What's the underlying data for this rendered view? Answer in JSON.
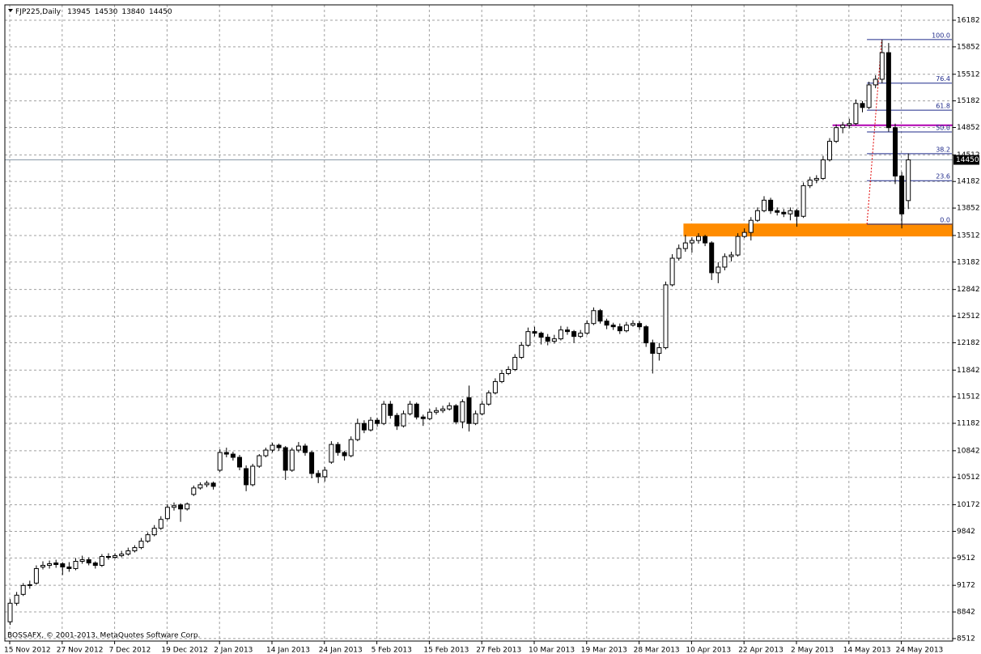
{
  "chart_data": {
    "type": "candlestick",
    "title": "FJP225,Daily",
    "footer": "BOSSAFX, © 2001-2013, MetaQuotes Software Corp.",
    "ylim": [
      8481,
      16373
    ],
    "yticks": [
      8512,
      8842,
      9172,
      9512,
      9842,
      10172,
      10512,
      10842,
      11182,
      11512,
      11842,
      12182,
      12512,
      12842,
      13182,
      13512,
      13852,
      14182,
      14512,
      14852,
      15182,
      15512,
      15852,
      16182
    ],
    "grid": true,
    "up_color": "#ffffff",
    "down_color": "#000000",
    "categories": [
      "15 Nov 2012",
      null,
      null,
      null,
      null,
      null,
      null,
      null,
      "27 Nov 2012",
      null,
      null,
      null,
      null,
      null,
      null,
      null,
      "7 Dec 2012",
      null,
      null,
      null,
      null,
      null,
      null,
      null,
      "19 Dec 2012",
      null,
      null,
      null,
      null,
      null,
      null,
      null,
      "2 Jan 2013",
      null,
      null,
      null,
      null,
      null,
      null,
      null,
      "14 Jan 2013",
      null,
      null,
      null,
      null,
      null,
      null,
      null,
      "24 Jan 2013",
      null,
      null,
      null,
      null,
      null,
      null,
      null,
      "5 Feb 2013",
      null,
      null,
      null,
      null,
      null,
      null,
      null,
      "15 Feb 2013",
      null,
      null,
      null,
      null,
      null,
      null,
      null,
      "27 Feb 2013",
      null,
      null,
      null,
      null,
      null,
      null,
      null,
      "10 Mar 2013",
      null,
      null,
      null,
      null,
      null,
      null,
      null,
      "19 Mar 2013",
      null,
      null,
      null,
      null,
      null,
      null,
      null,
      "28 Mar 2013",
      null,
      null,
      null,
      null,
      null,
      null,
      null,
      "10 Apr 2013",
      null,
      null,
      null,
      null,
      null,
      null,
      null,
      "22 Apr 2013",
      null,
      null,
      null,
      null,
      null,
      null,
      null,
      "2 May 2013",
      null,
      null,
      null,
      null,
      null,
      null,
      null,
      "14 May 2013",
      null,
      null,
      null,
      null,
      null,
      null,
      null,
      "24 May 2013",
      null
    ],
    "ohlc": [
      [
        8720,
        9000,
        8680,
        8950
      ],
      [
        8950,
        9090,
        8920,
        9050
      ],
      [
        9060,
        9200,
        9040,
        9170
      ],
      [
        9170,
        9230,
        9130,
        9180
      ],
      [
        9200,
        9420,
        9180,
        9380
      ],
      [
        9400,
        9470,
        9370,
        9420
      ],
      [
        9420,
        9480,
        9380,
        9440
      ],
      [
        9450,
        9490,
        9390,
        9430
      ],
      [
        9440,
        9460,
        9300,
        9400
      ],
      [
        9400,
        9460,
        9340,
        9380
      ],
      [
        9380,
        9510,
        9360,
        9470
      ],
      [
        9470,
        9540,
        9440,
        9490
      ],
      [
        9490,
        9520,
        9420,
        9450
      ],
      [
        9450,
        9470,
        9380,
        9420
      ],
      [
        9420,
        9560,
        9400,
        9530
      ],
      [
        9530,
        9570,
        9490,
        9520
      ],
      [
        9520,
        9570,
        9500,
        9540
      ],
      [
        9540,
        9600,
        9520,
        9560
      ],
      [
        9560,
        9640,
        9540,
        9600
      ],
      [
        9600,
        9670,
        9580,
        9640
      ],
      [
        9640,
        9760,
        9620,
        9720
      ],
      [
        9720,
        9830,
        9700,
        9800
      ],
      [
        9800,
        9920,
        9780,
        9880
      ],
      [
        9880,
        10030,
        9860,
        9990
      ],
      [
        10000,
        10180,
        9980,
        10140
      ],
      [
        10140,
        10200,
        10100,
        10160
      ],
      [
        10170,
        10190,
        9960,
        10120
      ],
      [
        10120,
        10200,
        10100,
        10180
      ],
      [
        10300,
        10410,
        10280,
        10380
      ],
      [
        10380,
        10450,
        10360,
        10420
      ],
      [
        10420,
        10470,
        10390,
        10440
      ],
      [
        10440,
        10460,
        10360,
        10400
      ],
      [
        10600,
        10860,
        10580,
        10820
      ],
      [
        10820,
        10880,
        10760,
        10800
      ],
      [
        10800,
        10830,
        10720,
        10760
      ],
      [
        10760,
        10790,
        10600,
        10640
      ],
      [
        10620,
        10660,
        10340,
        10420
      ],
      [
        10420,
        10680,
        10400,
        10650
      ],
      [
        10650,
        10800,
        10630,
        10780
      ],
      [
        10780,
        10880,
        10760,
        10850
      ],
      [
        10850,
        10940,
        10820,
        10910
      ],
      [
        10910,
        10930,
        10840,
        10880
      ],
      [
        10880,
        10900,
        10480,
        10600
      ],
      [
        10600,
        10880,
        10580,
        10850
      ],
      [
        10850,
        10950,
        10820,
        10900
      ],
      [
        10900,
        10930,
        10780,
        10820
      ],
      [
        10820,
        10840,
        10500,
        10560
      ],
      [
        10560,
        10600,
        10440,
        10520
      ],
      [
        10520,
        10640,
        10460,
        10600
      ],
      [
        10700,
        10960,
        10680,
        10920
      ],
      [
        10920,
        10950,
        10780,
        10820
      ],
      [
        10820,
        10840,
        10720,
        10780
      ],
      [
        10780,
        11020,
        10760,
        10980
      ],
      [
        10980,
        11240,
        10960,
        11180
      ],
      [
        11180,
        11220,
        11060,
        11100
      ],
      [
        11100,
        11260,
        11080,
        11220
      ],
      [
        11220,
        11250,
        11140,
        11180
      ],
      [
        11180,
        11460,
        11160,
        11420
      ],
      [
        11420,
        11460,
        11240,
        11280
      ],
      [
        11280,
        11310,
        11100,
        11150
      ],
      [
        11150,
        11340,
        11130,
        11300
      ],
      [
        11300,
        11460,
        11280,
        11420
      ],
      [
        11420,
        11440,
        11230,
        11260
      ],
      [
        11260,
        11290,
        11150,
        11240
      ],
      [
        11240,
        11360,
        11220,
        11320
      ],
      [
        11320,
        11380,
        11290,
        11340
      ],
      [
        11340,
        11400,
        11310,
        11360
      ],
      [
        11360,
        11440,
        11340,
        11400
      ],
      [
        11400,
        11420,
        11170,
        11200
      ],
      [
        11200,
        11480,
        11120,
        11450
      ],
      [
        11500,
        11650,
        11080,
        11180
      ],
      [
        11180,
        11340,
        11160,
        11300
      ],
      [
        11300,
        11460,
        11280,
        11420
      ],
      [
        11420,
        11590,
        11400,
        11560
      ],
      [
        11560,
        11740,
        11540,
        11700
      ],
      [
        11700,
        11840,
        11680,
        11800
      ],
      [
        11800,
        11890,
        11780,
        11850
      ],
      [
        11850,
        12040,
        11830,
        12000
      ],
      [
        12000,
        12190,
        11980,
        12150
      ],
      [
        12150,
        12370,
        12130,
        12320
      ],
      [
        12320,
        12380,
        12260,
        12300
      ],
      [
        12300,
        12320,
        12160,
        12250
      ],
      [
        12250,
        12290,
        12150,
        12200
      ],
      [
        12200,
        12280,
        12170,
        12230
      ],
      [
        12230,
        12390,
        12210,
        12340
      ],
      [
        12340,
        12380,
        12280,
        12320
      ],
      [
        12320,
        12340,
        12180,
        12260
      ],
      [
        12260,
        12340,
        12240,
        12300
      ],
      [
        12300,
        12460,
        12280,
        12420
      ],
      [
        12420,
        12620,
        12400,
        12580
      ],
      [
        12580,
        12600,
        12420,
        12450
      ],
      [
        12450,
        12480,
        12350,
        12400
      ],
      [
        12400,
        12430,
        12340,
        12380
      ],
      [
        12380,
        12420,
        12290,
        12330
      ],
      [
        12330,
        12440,
        12310,
        12400
      ],
      [
        12400,
        12460,
        12380,
        12420
      ],
      [
        12420,
        12450,
        12340,
        12380
      ],
      [
        12380,
        12400,
        12130,
        12180
      ],
      [
        12180,
        12220,
        11800,
        12050
      ],
      [
        12050,
        12180,
        11960,
        12120
      ],
      [
        12120,
        12940,
        12100,
        12900
      ],
      [
        12900,
        13280,
        12880,
        13230
      ],
      [
        13230,
        13400,
        13200,
        13350
      ],
      [
        13350,
        13520,
        13310,
        13420
      ],
      [
        13420,
        13490,
        13300,
        13450
      ],
      [
        13450,
        13540,
        13410,
        13500
      ],
      [
        13500,
        13520,
        13380,
        13420
      ],
      [
        13420,
        13440,
        12960,
        13050
      ],
      [
        13050,
        13180,
        12920,
        13120
      ],
      [
        13120,
        13290,
        13080,
        13250
      ],
      [
        13250,
        13310,
        13190,
        13270
      ],
      [
        13270,
        13540,
        13250,
        13500
      ],
      [
        13500,
        13600,
        13480,
        13550
      ],
      [
        13550,
        13740,
        13450,
        13700
      ],
      [
        13700,
        13860,
        13680,
        13820
      ],
      [
        13820,
        14000,
        13800,
        13950
      ],
      [
        13950,
        13980,
        13780,
        13820
      ],
      [
        13820,
        13860,
        13760,
        13800
      ],
      [
        13800,
        13840,
        13740,
        13780
      ],
      [
        13780,
        13860,
        13700,
        13820
      ],
      [
        13820,
        13840,
        13620,
        13750
      ],
      [
        13750,
        14170,
        13730,
        14130
      ],
      [
        14130,
        14240,
        14100,
        14200
      ],
      [
        14200,
        14260,
        14160,
        14220
      ],
      [
        14220,
        14500,
        14200,
        14450
      ],
      [
        14450,
        14720,
        14430,
        14680
      ],
      [
        14680,
        14890,
        14660,
        14850
      ],
      [
        14850,
        14920,
        14780,
        14880
      ],
      [
        14880,
        14960,
        14840,
        14900
      ],
      [
        14900,
        15200,
        14880,
        15150
      ],
      [
        15150,
        15180,
        15040,
        15100
      ],
      [
        15100,
        15420,
        15080,
        15380
      ],
      [
        15380,
        15500,
        15340,
        15450
      ],
      [
        15450,
        15942,
        15400,
        15780
      ],
      [
        15780,
        15900,
        14800,
        14850
      ],
      [
        14850,
        14900,
        14150,
        14250
      ],
      [
        14250,
        14300,
        13600,
        13780
      ],
      [
        13945,
        14530,
        13840,
        14450
      ]
    ],
    "fibo_levels": [
      {
        "label": "100.0",
        "price": 15942
      },
      {
        "label": "76.4",
        "price": 15402
      },
      {
        "label": "61.8",
        "price": 15067
      },
      {
        "label": "50.0",
        "price": 14797
      },
      {
        "label": "38.2",
        "price": 14527
      },
      {
        "label": "23.6",
        "price": 14192
      },
      {
        "label": "0.0",
        "price": 13652
      }
    ],
    "hline": {
      "price": 14880,
      "color": "#b000b0"
    },
    "zone": {
      "low": 13500,
      "high": 13660,
      "color": "#ff8c00"
    }
  }
}
